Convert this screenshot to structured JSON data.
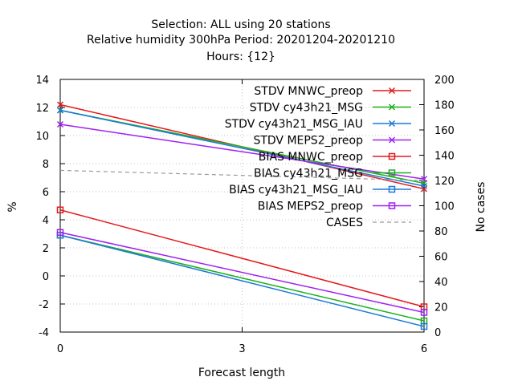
{
  "chart_data": {
    "type": "line",
    "title_lines": [
      "Selection: ALL using    20 stations",
      "Relative humidity 300hPa   Period: 20201204-20201210",
      "Hours: {12}"
    ],
    "xlabel": "Forecast length",
    "ylabel": "%",
    "y2label": "No cases",
    "x": [
      0,
      3,
      6
    ],
    "xticks": [
      "0",
      "3",
      "6"
    ],
    "xlim": [
      0,
      6
    ],
    "ylim": [
      -4,
      14
    ],
    "yticks": [
      "-4",
      "-2",
      "0",
      "2",
      "4",
      "6",
      "8",
      "10",
      "12",
      "14"
    ],
    "y2lim": [
      0,
      200
    ],
    "y2ticks": [
      "0",
      "20",
      "40",
      "60",
      "80",
      "100",
      "120",
      "140",
      "160",
      "180",
      "200"
    ],
    "grid": true,
    "legend_position": "top-right",
    "series": [
      {
        "name": "STDV MNWC_preop",
        "x": [
          0,
          6
        ],
        "values": [
          12.2,
          6.2
        ],
        "color": "#e41a1c",
        "marker": "x"
      },
      {
        "name": "STDV cy43h21_MSG",
        "x": [
          0,
          6
        ],
        "values": [
          11.8,
          6.6
        ],
        "color": "#1cb01c",
        "marker": "x"
      },
      {
        "name": "STDV cy43h21_MSG_IAU",
        "x": [
          0,
          6
        ],
        "values": [
          11.8,
          6.4
        ],
        "color": "#1c7ad6",
        "marker": "x"
      },
      {
        "name": "STDV MEPS2_preop",
        "x": [
          0,
          6
        ],
        "values": [
          10.8,
          6.9
        ],
        "color": "#a020f0",
        "marker": "x"
      },
      {
        "name": "BIAS MNWC_preop",
        "x": [
          0,
          6
        ],
        "values": [
          4.7,
          -2.2
        ],
        "color": "#e41a1c",
        "marker": "square"
      },
      {
        "name": "BIAS cy43h21_MSG",
        "x": [
          0,
          6
        ],
        "values": [
          2.9,
          -3.2
        ],
        "color": "#1cb01c",
        "marker": "square"
      },
      {
        "name": "BIAS cy43h21_MSG_IAU",
        "x": [
          0,
          6
        ],
        "values": [
          2.9,
          -3.6
        ],
        "color": "#1c7ad6",
        "marker": "square"
      },
      {
        "name": "BIAS MEPS2_preop",
        "x": [
          0,
          6
        ],
        "values": [
          3.1,
          -2.6
        ],
        "color": "#a020f0",
        "marker": "square"
      },
      {
        "name": "CASES",
        "x": [
          0,
          6
        ],
        "values": [
          128,
          120
        ],
        "color": "#999999",
        "marker": "none",
        "dashed": true,
        "axis": "y2"
      }
    ]
  }
}
